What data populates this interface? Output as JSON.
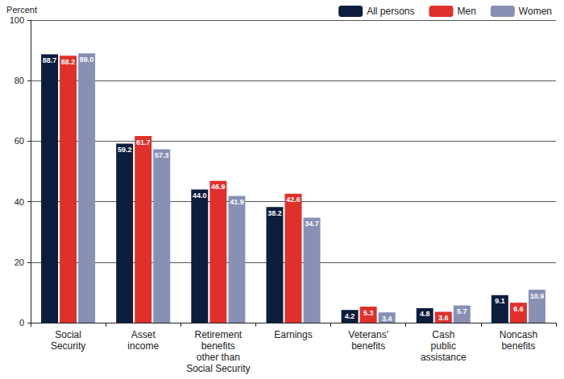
{
  "chart_data": {
    "type": "bar",
    "y_label": "Percent",
    "categories": [
      "Social\nSecurity",
      "Asset\nincome",
      "Retirement\nbenefits\nother than\nSocial Security",
      "Earnings",
      "Veterans'\nbenefits",
      "Cash\npublic\nassistance",
      "Noncash\nbenefits"
    ],
    "series": [
      {
        "name": "All persons",
        "color": "#0c1d3d",
        "values": [
          88.7,
          59.2,
          44.0,
          38.2,
          4.2,
          4.8,
          9.1
        ],
        "value_labels": [
          "88.7",
          "59.2",
          "44.0",
          "38.2",
          "4.2",
          "4.8",
          "9.1"
        ]
      },
      {
        "name": "Men",
        "color": "#e0302c",
        "values": [
          88.2,
          61.7,
          46.9,
          42.6,
          5.3,
          3.6,
          6.6
        ],
        "value_labels": [
          "88.2",
          "61.7",
          "46.9",
          "42.6",
          "5.3",
          "3.6",
          "6.6"
        ]
      },
      {
        "name": "Women",
        "color": "#8890b5",
        "values": [
          89.0,
          57.3,
          41.9,
          34.7,
          3.4,
          5.7,
          10.9
        ],
        "value_labels": [
          "89.0",
          "57.3",
          "41.9",
          "34.7",
          "3.4",
          "5.7",
          "10.9"
        ]
      }
    ],
    "ylim": [
      0,
      100
    ],
    "yticks": [
      0,
      20,
      40,
      60,
      80,
      100
    ],
    "grid": true,
    "legend": "top-right",
    "data_labels": true
  }
}
